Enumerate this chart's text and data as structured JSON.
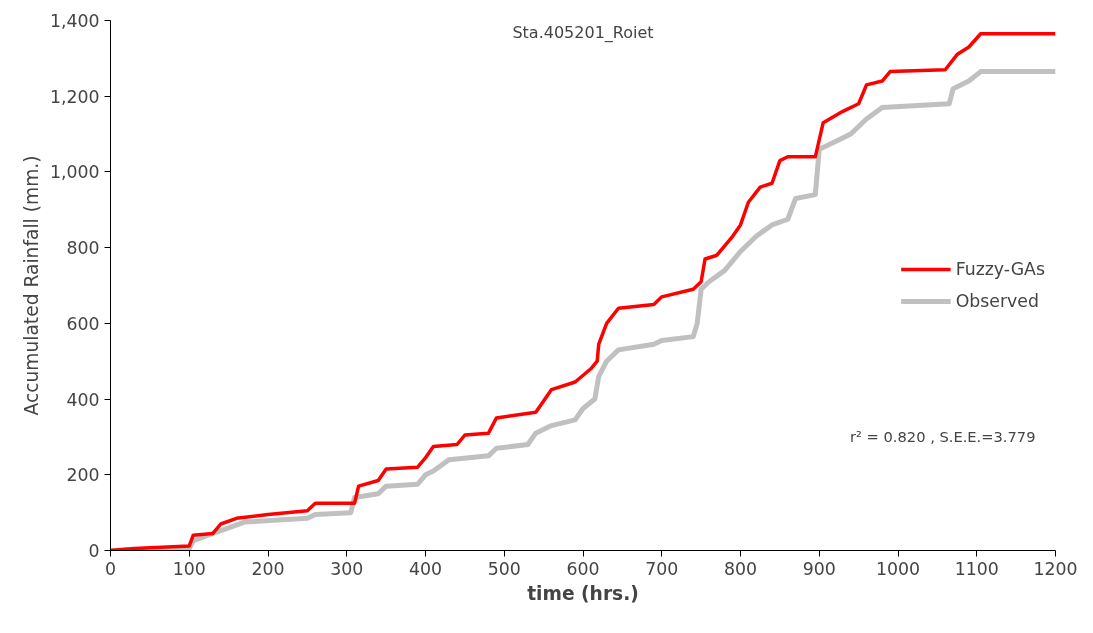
{
  "chart_data": {
    "type": "line",
    "title": "Sta.405201_Roiet",
    "xlabel": "time (hrs.)",
    "ylabel": "Accumulated Rainfall (mm.)",
    "xlim": [
      0,
      1200
    ],
    "xticks": [
      0,
      100,
      200,
      300,
      400,
      500,
      600,
      700,
      800,
      900,
      1000,
      1100,
      1200
    ],
    "ylim": [
      0,
      1400
    ],
    "yticks": [
      0,
      200,
      400,
      600,
      800,
      {
        "value": 1000,
        "label": "1,000"
      },
      {
        "value": 1200,
        "label": "1,200"
      },
      {
        "value": 1400,
        "label": "1,400"
      }
    ],
    "grid": false,
    "legend": "right",
    "line_style": "solid",
    "annotations": [
      "r² = 0.820 , S.E.E.=3.779"
    ],
    "series": [
      {
        "name": "Fuzzy-GAs",
        "color": "#ff0000",
        "x": [
          0,
          30,
          100,
          105,
          130,
          140,
          160,
          200,
          250,
          260,
          310,
          315,
          340,
          350,
          390,
          400,
          410,
          440,
          450,
          480,
          490,
          540,
          550,
          560,
          590,
          610,
          618,
          620,
          630,
          645,
          690,
          700,
          740,
          750,
          755,
          770,
          790,
          800,
          810,
          825,
          840,
          850,
          860,
          895,
          905,
          930,
          950,
          960,
          980,
          990,
          1060,
          1075,
          1090,
          1105,
          1200
        ],
        "values": [
          0,
          5,
          12,
          40,
          45,
          70,
          85,
          95,
          105,
          125,
          125,
          170,
          185,
          215,
          220,
          245,
          275,
          280,
          305,
          310,
          350,
          365,
          395,
          425,
          445,
          480,
          500,
          545,
          600,
          640,
          650,
          670,
          690,
          710,
          770,
          780,
          830,
          860,
          920,
          960,
          970,
          1030,
          1040,
          1040,
          1130,
          1160,
          1180,
          1230,
          1240,
          1265,
          1270,
          1310,
          1330,
          1365,
          1365
        ]
      },
      {
        "name": "Observed",
        "color": "#c0c0c0",
        "x": [
          0,
          100,
          105,
          130,
          150,
          170,
          250,
          260,
          305,
          310,
          340,
          350,
          390,
          400,
          410,
          430,
          480,
          490,
          530,
          540,
          560,
          590,
          600,
          615,
          620,
          630,
          645,
          690,
          700,
          740,
          745,
          750,
          760,
          780,
          800,
          820,
          840,
          860,
          870,
          895,
          900,
          920,
          940,
          960,
          980,
          1065,
          1070,
          1090,
          1105,
          1200
        ],
        "values": [
          0,
          5,
          25,
          45,
          60,
          75,
          85,
          95,
          100,
          140,
          150,
          170,
          175,
          200,
          210,
          240,
          250,
          270,
          280,
          310,
          330,
          345,
          375,
          400,
          460,
          500,
          530,
          545,
          555,
          565,
          600,
          690,
          710,
          740,
          790,
          830,
          860,
          875,
          930,
          940,
          1060,
          1080,
          1100,
          1140,
          1170,
          1180,
          1220,
          1240,
          1265,
          1265
        ]
      }
    ]
  }
}
